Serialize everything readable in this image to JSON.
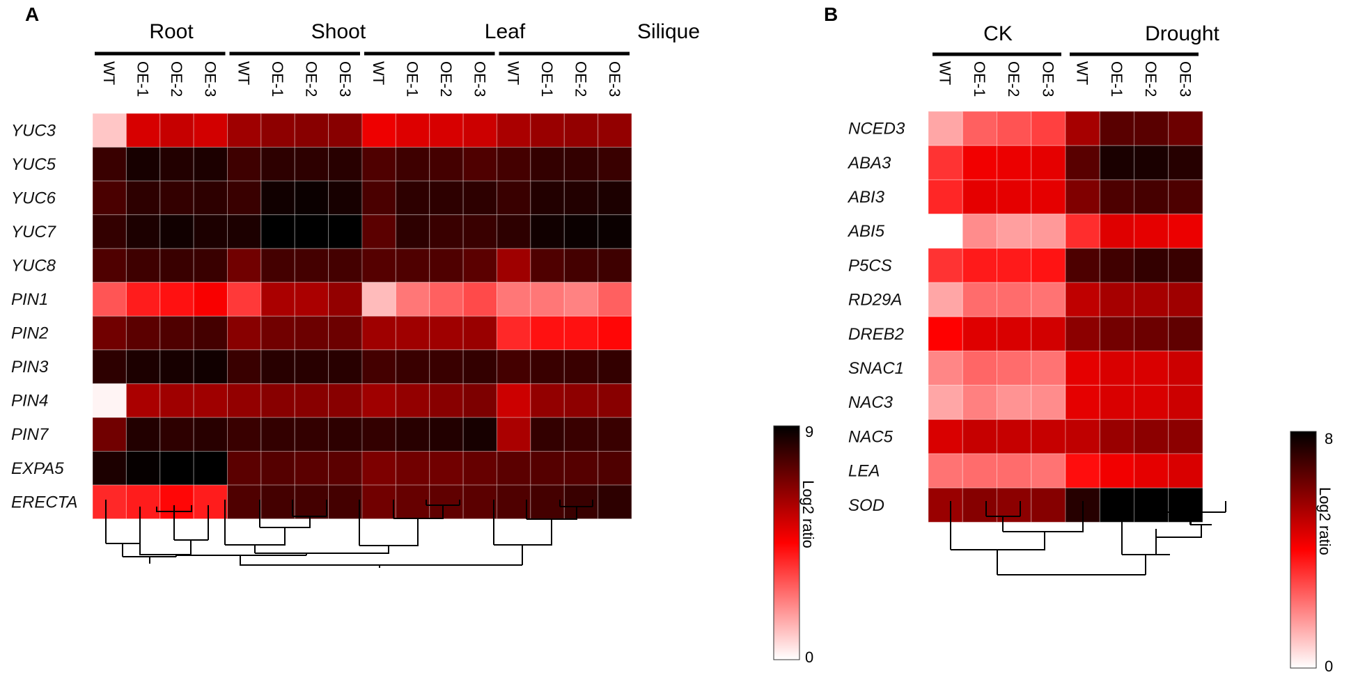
{
  "chart_data": [
    {
      "type": "heatmap",
      "panel": "A",
      "groups": [
        "Root",
        "Shoot",
        "Leaf",
        "Silique"
      ],
      "columns": [
        "WT",
        "OE-1",
        "OE-2",
        "OE-3",
        "WT",
        "OE-1",
        "OE-2",
        "OE-3",
        "WT",
        "OE-1",
        "OE-2",
        "OE-3",
        "WT",
        "OE-1",
        "OE-2",
        "OE-3"
      ],
      "rows": [
        "YUC3",
        "YUC5",
        "YUC6",
        "YUC7",
        "YUC8",
        "PIN1",
        "PIN2",
        "PIN3",
        "PIN4",
        "PIN7",
        "EXPA5",
        "ERECTA"
      ],
      "values": [
        [
          1.0,
          5.2,
          5.5,
          5.3,
          6.2,
          6.5,
          6.6,
          6.6,
          4.8,
          5.1,
          5.2,
          5.4,
          6.0,
          6.3,
          6.4,
          6.4
        ],
        [
          8.0,
          8.6,
          8.4,
          8.5,
          7.9,
          8.2,
          8.2,
          8.3,
          7.6,
          7.9,
          7.8,
          7.6,
          7.8,
          8.1,
          8.1,
          8.0
        ],
        [
          7.7,
          8.2,
          8.1,
          8.2,
          8.0,
          8.7,
          8.8,
          8.6,
          7.7,
          8.2,
          8.2,
          8.2,
          8.0,
          8.4,
          8.4,
          8.5
        ],
        [
          8.1,
          8.5,
          8.7,
          8.5,
          8.5,
          9.0,
          9.0,
          9.0,
          7.4,
          8.2,
          8.0,
          8.0,
          8.2,
          8.7,
          8.8,
          8.8
        ],
        [
          7.6,
          7.9,
          8.0,
          8.0,
          7.0,
          7.8,
          7.8,
          7.8,
          7.5,
          7.6,
          7.6,
          7.4,
          6.2,
          7.6,
          7.8,
          7.9
        ],
        [
          3.0,
          4.0,
          4.2,
          4.6,
          3.5,
          6.0,
          6.0,
          6.4,
          1.2,
          2.4,
          2.8,
          3.2,
          2.4,
          2.4,
          2.2,
          2.8
        ],
        [
          7.0,
          7.4,
          7.6,
          7.8,
          6.6,
          7.0,
          7.1,
          7.1,
          6.2,
          6.2,
          6.2,
          6.3,
          3.8,
          4.2,
          4.2,
          4.4
        ],
        [
          8.2,
          8.5,
          8.6,
          8.7,
          8.0,
          8.3,
          8.3,
          8.3,
          7.8,
          8.0,
          8.0,
          8.1,
          7.8,
          8.0,
          8.0,
          8.1
        ],
        [
          0.2,
          6.0,
          6.2,
          6.2,
          6.4,
          6.6,
          6.6,
          6.6,
          6.2,
          6.4,
          6.6,
          6.8,
          5.4,
          6.4,
          6.5,
          6.6
        ],
        [
          7.0,
          8.4,
          8.2,
          8.3,
          8.0,
          8.1,
          8.1,
          8.2,
          8.1,
          8.3,
          8.4,
          8.6,
          6.0,
          8.1,
          8.0,
          8.0
        ],
        [
          8.5,
          8.9,
          9.0,
          9.0,
          7.4,
          7.5,
          7.4,
          7.4,
          6.8,
          7.0,
          7.0,
          7.2,
          7.4,
          7.5,
          7.5,
          7.6
        ],
        [
          3.8,
          4.0,
          4.4,
          4.0,
          7.6,
          7.8,
          7.8,
          7.8,
          7.0,
          7.2,
          7.3,
          7.4,
          7.6,
          7.8,
          8.0,
          8.2
        ]
      ],
      "colorbar": {
        "min": 0,
        "max": 9,
        "ticks": [
          "9",
          "0"
        ],
        "label": "Log2 ratio",
        "colors": [
          "#ffffff",
          "#ff0000",
          "#000000"
        ]
      },
      "dendrogram": "hierarchical clustering of samples (below heatmap)"
    },
    {
      "type": "heatmap",
      "panel": "B",
      "groups": [
        "CK",
        "Drought"
      ],
      "columns": [
        "WT",
        "OE-1",
        "OE-2",
        "OE-3",
        "WT",
        "OE-1",
        "OE-2",
        "OE-3"
      ],
      "rows": [
        "NCED3",
        "ABA3",
        "ABI3",
        "ABI5",
        "P5CS",
        "RD29A",
        "DREB2",
        "SNAC1",
        "NAC3",
        "NAC5",
        "LEA",
        "SOD"
      ],
      "values": [
        [
          1.4,
          2.5,
          2.7,
          3.0,
          5.4,
          6.6,
          6.6,
          6.3
        ],
        [
          3.2,
          4.2,
          4.3,
          4.4,
          6.6,
          7.6,
          7.6,
          7.4
        ],
        [
          3.4,
          4.4,
          4.4,
          4.4,
          6.0,
          6.8,
          6.9,
          6.8
        ],
        [
          0.0,
          1.8,
          1.5,
          1.6,
          3.3,
          4.5,
          4.4,
          4.3
        ],
        [
          3.2,
          3.6,
          3.6,
          3.7,
          6.8,
          7.0,
          7.2,
          7.1
        ],
        [
          1.4,
          2.3,
          2.3,
          2.2,
          5.0,
          5.4,
          5.4,
          5.5
        ],
        [
          4.0,
          4.5,
          4.6,
          4.7,
          5.8,
          6.2,
          6.3,
          6.5
        ],
        [
          1.9,
          2.4,
          2.3,
          2.2,
          4.4,
          4.6,
          4.6,
          4.8
        ],
        [
          1.4,
          2.0,
          1.7,
          1.8,
          4.4,
          4.6,
          4.6,
          4.8
        ],
        [
          4.6,
          4.9,
          4.9,
          4.9,
          5.0,
          5.6,
          5.8,
          5.8
        ],
        [
          2.2,
          2.3,
          2.3,
          2.2,
          3.8,
          4.2,
          4.4,
          4.6
        ],
        [
          5.6,
          5.9,
          5.8,
          5.9,
          7.4,
          8.0,
          8.0,
          8.0
        ]
      ],
      "colorbar": {
        "min": 0,
        "max": 8,
        "ticks": [
          "8",
          "0"
        ],
        "label": "Log2 ratio",
        "colors": [
          "#ffffff",
          "#ff0000",
          "#000000"
        ]
      },
      "dendrogram": "hierarchical clustering of samples (below heatmap)"
    }
  ]
}
